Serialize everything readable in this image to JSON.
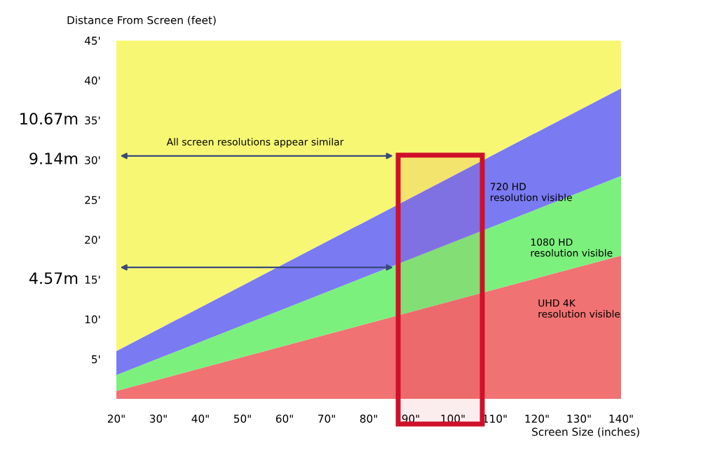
{
  "chart_data": {
    "type": "area",
    "stacked": true,
    "ylabel": "Distance From Screen (feet)",
    "xlabel": "Screen Size (inches)",
    "x": [
      20,
      140
    ],
    "series": [
      {
        "color": "#f07272",
        "values": [
          1,
          18
        ]
      },
      {
        "color": "#7cf07c",
        "values": [
          2,
          10
        ]
      },
      {
        "color": "#7a7af2",
        "values": [
          3,
          11
        ]
      },
      {
        "color": "#f7f774",
        "values": [
          39,
          6
        ]
      }
    ],
    "xlim": [
      20,
      140
    ],
    "ylim": [
      0,
      45
    ],
    "xticks": [
      {
        "value": 20,
        "label": "20\""
      },
      {
        "value": 30,
        "label": "30\""
      },
      {
        "value": 40,
        "label": "40\""
      },
      {
        "value": 50,
        "label": "50\""
      },
      {
        "value": 60,
        "label": "60\""
      },
      {
        "value": 70,
        "label": "70\""
      },
      {
        "value": 80,
        "label": "80\""
      },
      {
        "value": 90,
        "label": "90\""
      },
      {
        "value": 100,
        "label": "100\""
      },
      {
        "value": 110,
        "label": "110\""
      },
      {
        "value": 120,
        "label": "120\""
      },
      {
        "value": 130,
        "label": "130\""
      },
      {
        "value": 140,
        "label": "140\""
      }
    ],
    "yticks": [
      {
        "value": 5,
        "label": "5'"
      },
      {
        "value": 10,
        "label": "10'"
      },
      {
        "value": 15,
        "label": "15'"
      },
      {
        "value": 20,
        "label": "20'"
      },
      {
        "value": 25,
        "label": "25'"
      },
      {
        "value": 30,
        "label": "30'"
      },
      {
        "value": 35,
        "label": "35'"
      },
      {
        "value": 40,
        "label": "40'"
      },
      {
        "value": 45,
        "label": "45'"
      }
    ],
    "annotations": [
      "All screen resolutions appear similar",
      "720 HD\nresolution visible",
      "1080 HD\nresolution visible",
      "UHD 4K\nresolution visible",
      "10.67m",
      "9.14m",
      "4.57m"
    ],
    "bands": [
      {
        "axis": "x",
        "from": 87,
        "to": 107,
        "color": "#d0102a"
      }
    ],
    "grid": false
  }
}
